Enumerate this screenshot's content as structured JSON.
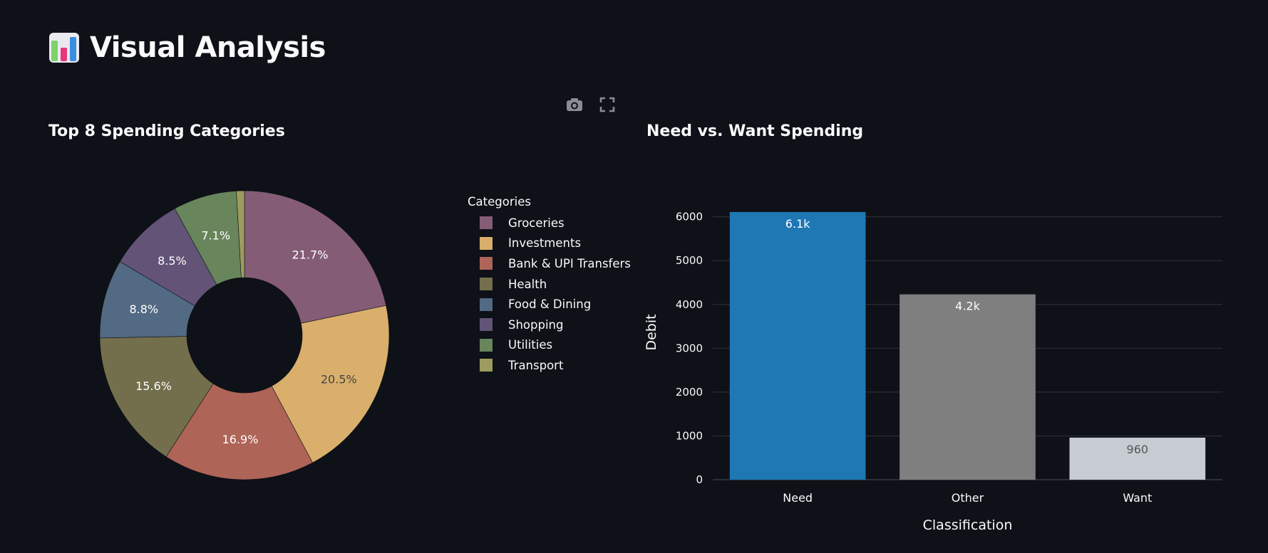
{
  "page": {
    "title": "Visual Analysis",
    "icon": "bar-chart-icon"
  },
  "toolbar": {
    "camera": "camera-icon",
    "fullscreen": "fullscreen-icon"
  },
  "chart_data": [
    {
      "type": "pie",
      "hole": true,
      "title": "Top 8 Spending Categories",
      "legend_title": "Categories",
      "legend_placement": "right",
      "labels": [
        "Groceries",
        "Investments",
        "Bank & UPI Transfers",
        "Health",
        "Food & Dining",
        "Shopping",
        "Utilities",
        "Transport"
      ],
      "values": [
        21.7,
        20.5,
        16.9,
        15.6,
        8.8,
        8.5,
        7.1,
        0.9
      ],
      "value_labels": [
        "21.7%",
        "20.5%",
        "16.9%",
        "15.6%",
        "8.8%",
        "8.5%",
        "7.1%",
        ""
      ],
      "colors": [
        "#855c75",
        "#d9af6b",
        "#af6458",
        "#736f4c",
        "#526a83",
        "#625377",
        "#68855c",
        "#9c9c5e"
      ],
      "label_colors": [
        "#ffffff",
        "#444444",
        "#ffffff",
        "#ffffff",
        "#ffffff",
        "#ffffff",
        "#ffffff",
        "#ffffff"
      ]
    },
    {
      "type": "bar",
      "title": "Need vs. Want Spending",
      "xlabel": "Classification",
      "ylabel": "Debit",
      "categories": [
        "Need",
        "Other",
        "Want"
      ],
      "values": [
        6110,
        4230,
        960
      ],
      "value_labels": [
        "6.1k",
        "4.2k",
        "960"
      ],
      "colors": [
        "#1f77b4",
        "#7f7f7f",
        "#c7ccd3"
      ],
      "label_colors": [
        "#ffffff",
        "#ffffff",
        "#555555"
      ],
      "ylim": [
        0,
        6400
      ],
      "yticks": [
        0,
        1000,
        2000,
        3000,
        4000,
        5000,
        6000
      ],
      "grid": true
    }
  ]
}
